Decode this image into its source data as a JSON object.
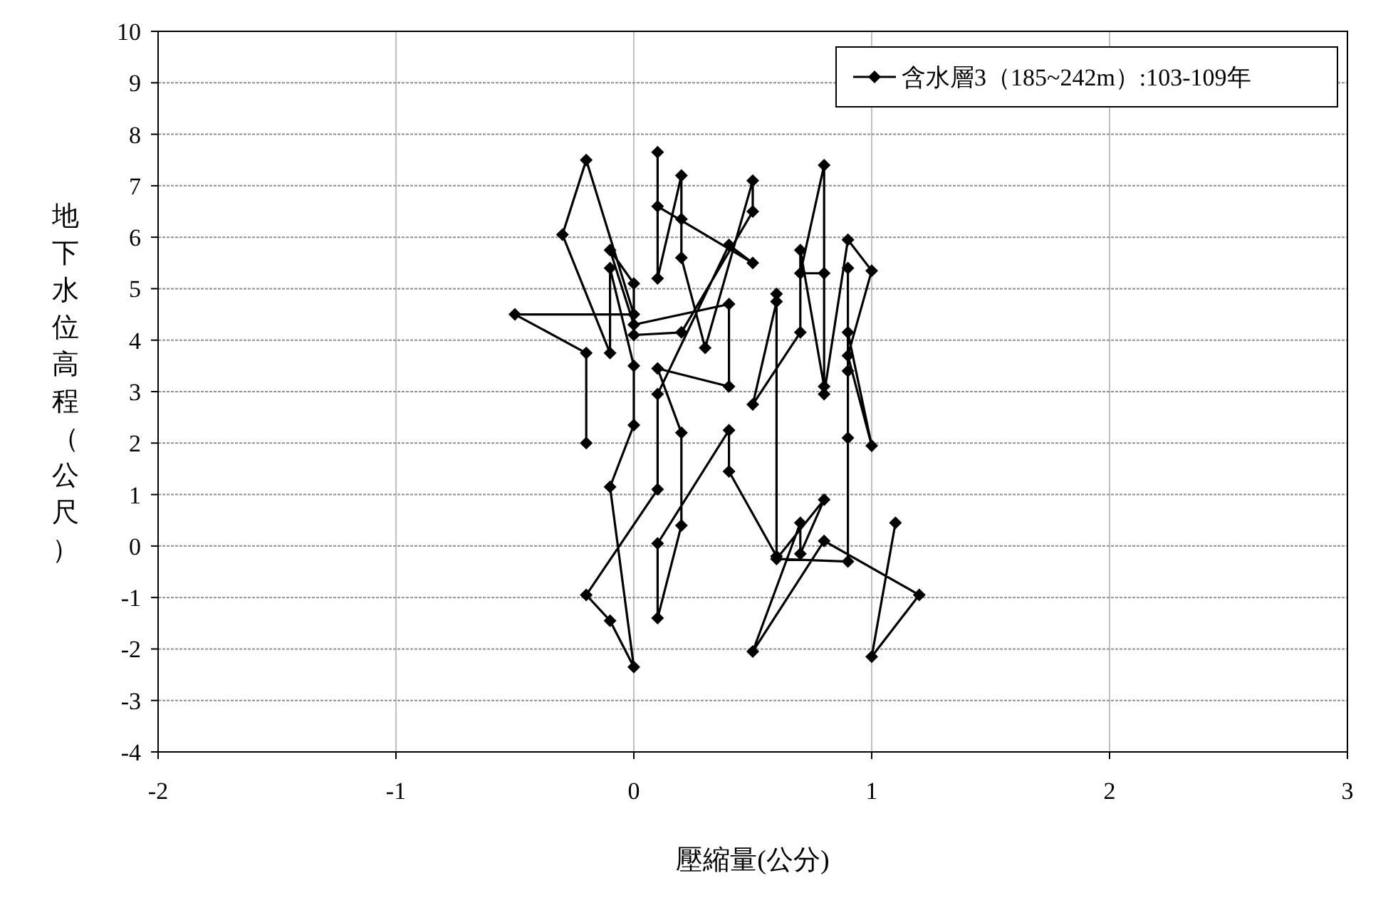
{
  "chart_data": {
    "type": "line",
    "xlabel": "壓縮量(公分)",
    "ylabel": "地下水位高程（公尺）",
    "xlim": [
      -2,
      3
    ],
    "xticks": [
      -2,
      -1,
      0,
      1,
      2,
      3
    ],
    "ylim": [
      -4,
      10
    ],
    "yticks": [
      -4,
      -3,
      -2,
      -1,
      0,
      1,
      2,
      3,
      4,
      5,
      6,
      7,
      8,
      9,
      10
    ],
    "grid": true,
    "legend": "top right",
    "marker": "diamond",
    "line_style": "solid",
    "series": [
      {
        "name": "含水層3（185~242m）:103-109年",
        "color": "#000000",
        "x": [
          -0.2,
          -0.2,
          -0.5,
          0,
          -0.2,
          -0.3,
          -0.1,
          -0.1,
          0,
          0,
          -0.1,
          0,
          -0.1,
          -0.2,
          0.1,
          0.1,
          0.4,
          0.5,
          0.1,
          0.1,
          0.1,
          0.2,
          0.2,
          0.2,
          0.3,
          0.5,
          0.5,
          0.2,
          0,
          0,
          -0.1,
          0,
          0.4,
          0.4,
          0.1,
          0.2,
          0.2,
          0.1,
          0.1,
          0.4,
          0.4,
          0.6,
          0.6,
          0.6,
          0.5,
          0.7,
          0.7,
          0.8,
          0.8,
          0.7,
          0.8,
          0.8,
          0.9,
          1.0,
          0.9,
          1.0,
          0.9,
          0.9,
          0.9,
          0.9,
          0.9,
          0.6,
          0.8,
          0.7,
          0.7,
          0.5,
          0.8,
          1.2,
          1.0,
          1.1
        ],
        "values": [
          2.0,
          3.75,
          4.5,
          4.5,
          7.5,
          6.05,
          3.75,
          5.4,
          3.5,
          2.35,
          1.15,
          -2.35,
          -1.45,
          -0.95,
          1.1,
          2.95,
          5.85,
          5.5,
          6.6,
          7.65,
          5.2,
          7.2,
          6.35,
          5.6,
          3.85,
          7.1,
          6.5,
          4.15,
          4.1,
          5.1,
          5.75,
          4.3,
          4.7,
          3.1,
          3.45,
          2.2,
          0.4,
          -1.4,
          0.05,
          2.25,
          1.45,
          -0.2,
          4.9,
          4.75,
          2.75,
          4.15,
          5.75,
          3.1,
          7.4,
          5.3,
          5.3,
          2.95,
          5.95,
          5.35,
          3.7,
          1.95,
          4.15,
          5.4,
          3.4,
          2.1,
          -0.3,
          -0.25,
          0.9,
          -0.15,
          0.45,
          -2.05,
          0.1,
          -0.95,
          -2.15,
          0.45
        ]
      }
    ]
  }
}
